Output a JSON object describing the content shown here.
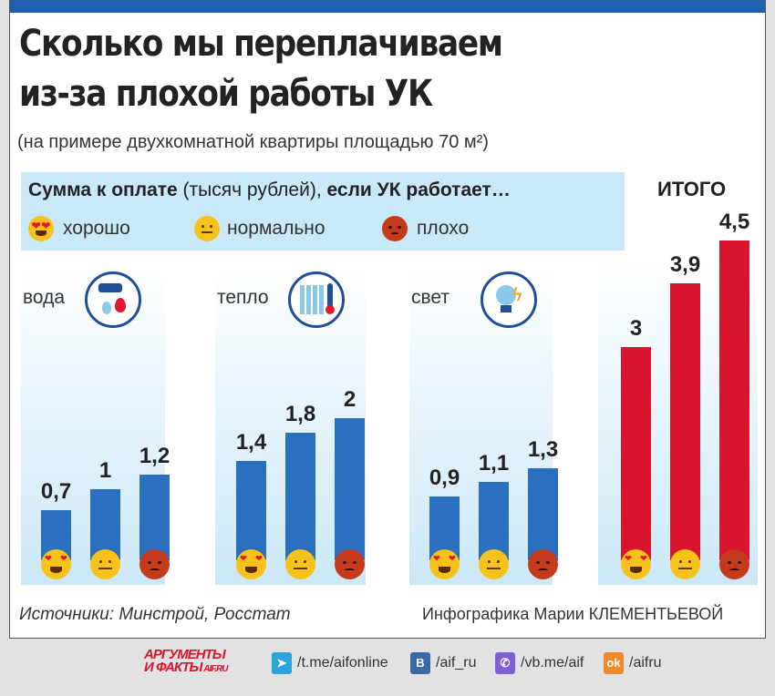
{
  "title_line1": "Сколько мы переплачиваем",
  "title_line2": "из-за плохой работы УК",
  "subtitle": "(на примере двухкомнатной квартиры площадью 70 м²)",
  "legend": {
    "header_bold1": "Сумма к оплате",
    "header_normal": " (тысяч рублей), ",
    "header_bold2": "если УК работает…",
    "items": [
      {
        "label": "хорошо",
        "icon": "heart-eyes-emoji-icon",
        "color": "#f7c21a"
      },
      {
        "label": "нормально",
        "icon": "neutral-face-emoji-icon",
        "color": "#f7c21a"
      },
      {
        "label": "плохо",
        "icon": "angry-face-emoji-icon",
        "color": "#c63a1c"
      }
    ]
  },
  "total_title": "ИТОГО",
  "chart_data": {
    "type": "bar",
    "series_names": [
      "хорошо",
      "нормально",
      "плохо"
    ],
    "groups": [
      {
        "category": "вода",
        "icon": "water-tap-icon",
        "values": [
          0.7,
          1,
          1.2
        ],
        "labels": [
          "0,7",
          "1",
          "1,2"
        ],
        "color": "#2a6fc0"
      },
      {
        "category": "тепло",
        "icon": "radiator-thermometer-icon",
        "values": [
          1.4,
          1.8,
          2
        ],
        "labels": [
          "1,4",
          "1,8",
          "2"
        ],
        "color": "#2a6fc0"
      },
      {
        "category": "свет",
        "icon": "light-bulb-icon",
        "values": [
          0.9,
          1.1,
          1.3
        ],
        "labels": [
          "0,9",
          "1,1",
          "1,3"
        ],
        "color": "#2a6fc0"
      },
      {
        "category": "ИТОГО",
        "icon": "",
        "values": [
          3,
          3.9,
          4.5
        ],
        "labels": [
          "3",
          "3,9",
          "4,5"
        ],
        "color": "#d8142f"
      }
    ],
    "units": "тысяч рублей"
  },
  "source": "Источники: Минстрой, Росстат",
  "credit": "Инфографика Марии КЛЕМЕНТЬЕВОЙ",
  "footer": {
    "logo": "АРГУМЕНТЫ И ФАКТЫ AIF.RU",
    "links": [
      {
        "icon": "telegram-icon",
        "text": "/t.me/aifonline",
        "color": "#2ea3dc"
      },
      {
        "icon": "vk-icon",
        "text": "/aif_ru",
        "color": "#3a6aa8"
      },
      {
        "icon": "viber-icon",
        "text": "/vb.me/aif",
        "color": "#7e5fd6"
      },
      {
        "icon": "odnoklassniki-icon",
        "text": "/aifru",
        "color": "#ee8a2c"
      }
    ]
  }
}
